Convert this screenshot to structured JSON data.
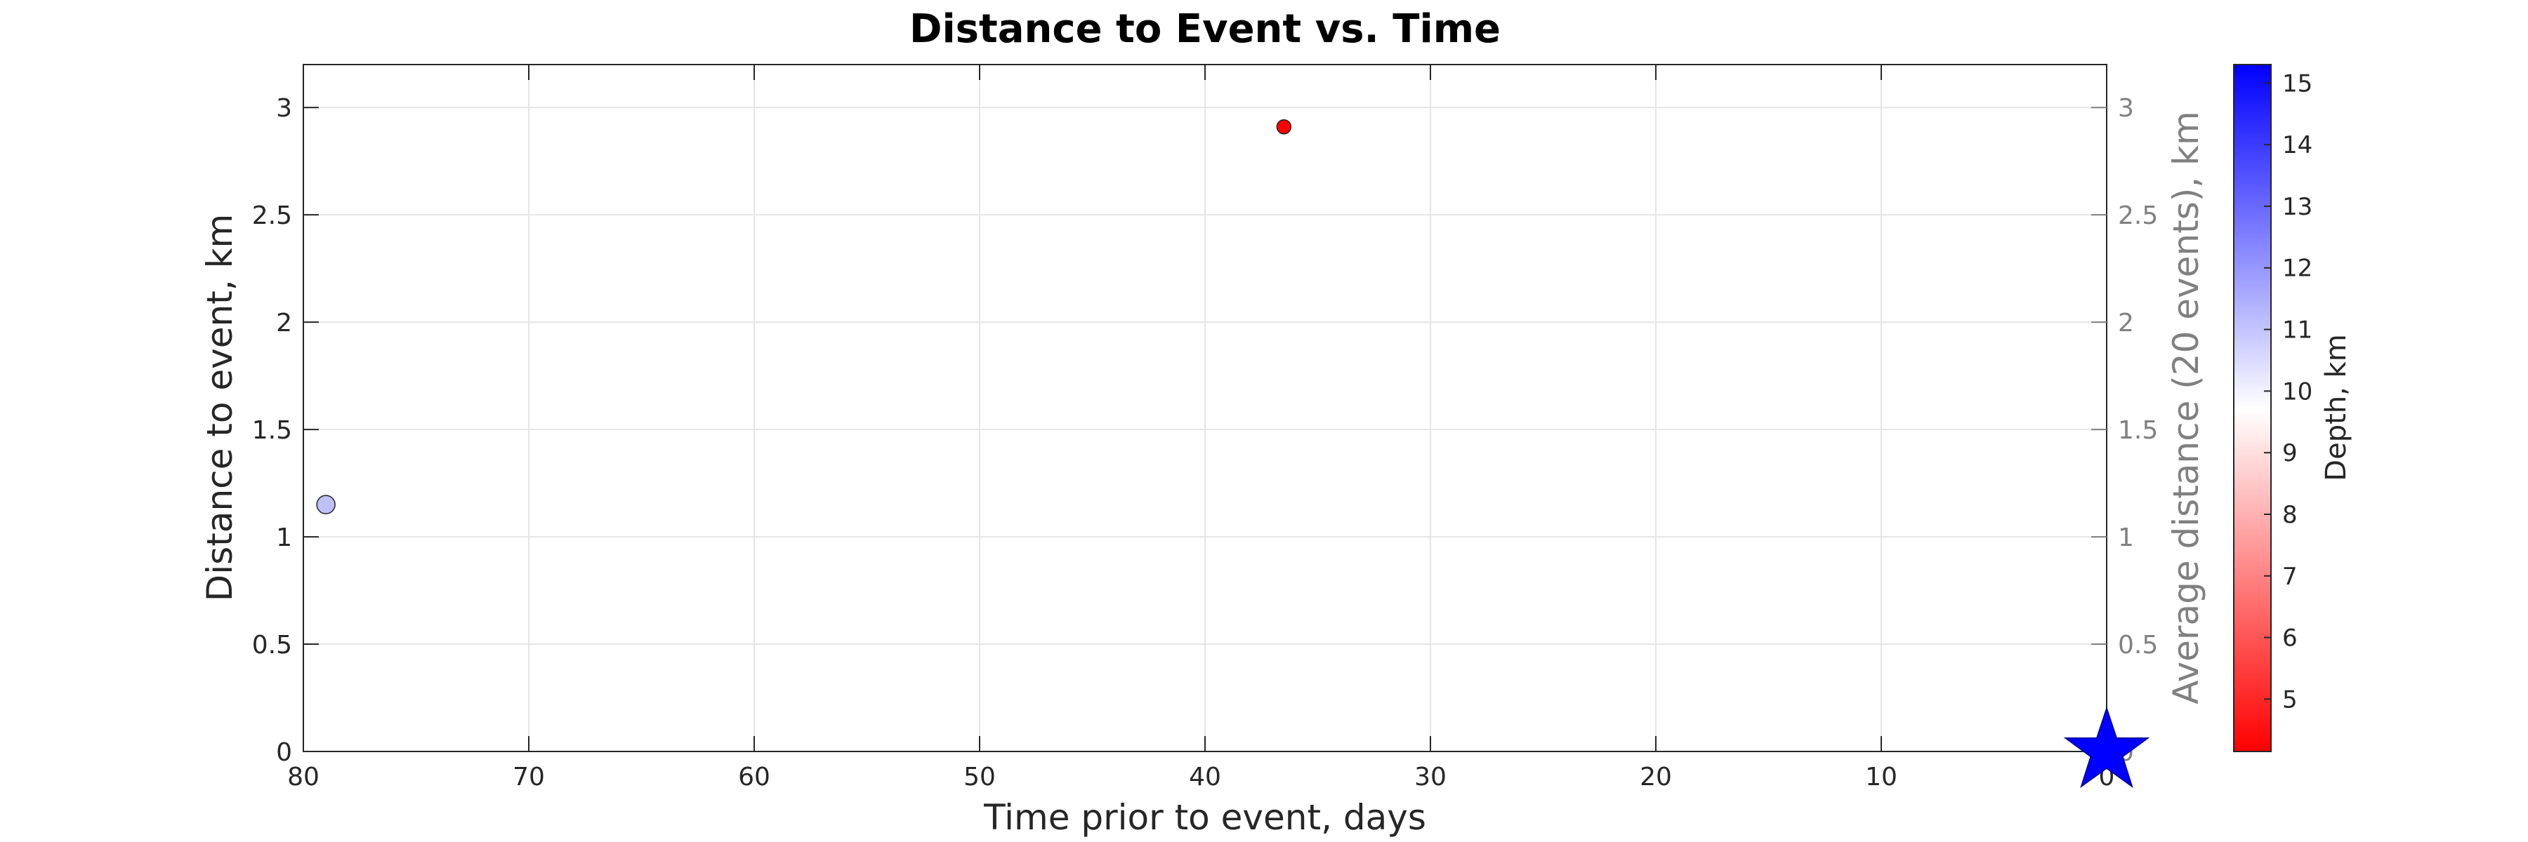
{
  "chart_data": {
    "type": "scatter",
    "title": "Distance to Event vs. Time",
    "xlabel": "Time prior to event, days",
    "ylabel": "Distance to event, km",
    "ylabel_right": "Average distance (20 events), km",
    "xlim": [
      80,
      0
    ],
    "x_reversed": true,
    "ylim": [
      0,
      3.2
    ],
    "xticks": [
      80,
      70,
      60,
      50,
      40,
      30,
      20,
      10,
      0
    ],
    "yticks": [
      0,
      0.5,
      1,
      1.5,
      2,
      2.5,
      3
    ],
    "yticks_right": [
      0,
      0.5,
      1,
      1.5,
      2,
      2.5,
      3
    ],
    "grid": true,
    "points": [
      {
        "x": 79.0,
        "y": 1.15,
        "depth": 11.0,
        "color": "#c0c0f8"
      },
      {
        "x": 36.5,
        "y": 2.91,
        "depth": 4.5,
        "color": "#ff0000"
      }
    ],
    "event_marker": {
      "x": 0,
      "y": 0,
      "shape": "star",
      "color": "#0000ff"
    },
    "colorbar": {
      "label": "Depth, km",
      "range": [
        4.15,
        15.3
      ],
      "ticks": [
        5,
        6,
        7,
        8,
        9,
        10,
        11,
        12,
        13,
        14,
        15
      ],
      "colors": [
        "#ff0000",
        "#ffffff",
        "#0000ff"
      ],
      "white_at": 9.7
    }
  }
}
